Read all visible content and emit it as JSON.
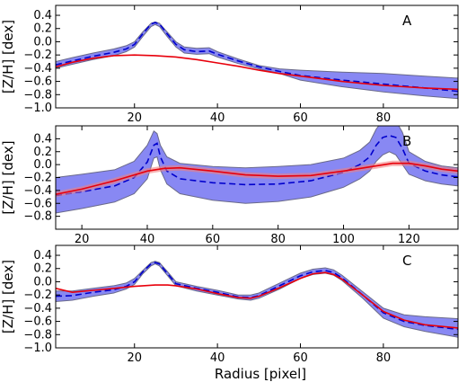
{
  "xlabel": "Radius [pixel]",
  "chart_data": [
    {
      "type": "line",
      "panel_label": "A",
      "ylabel": "[Z/H] [dex]",
      "xlim": [
        1,
        98
      ],
      "ylim": [
        -1.0,
        0.55
      ],
      "xticks": [
        20,
        40,
        60,
        80
      ],
      "yticks": [
        -1.0,
        -0.8,
        -0.6,
        -0.4,
        -0.2,
        0.0,
        0.2,
        0.4
      ],
      "ytick_labels": [
        "−1.0",
        "−0.8",
        "−0.6",
        "−0.4",
        "−0.2",
        "0.0",
        "0.2",
        "0.4"
      ],
      "band": {
        "x": [
          1,
          5,
          10,
          15,
          18,
          20,
          22,
          24,
          25,
          26,
          28,
          30,
          32,
          35,
          38,
          40,
          45,
          50,
          55,
          60,
          70,
          80,
          90,
          98
        ],
        "upper": [
          -0.3,
          -0.24,
          -0.17,
          -0.11,
          -0.06,
          0.0,
          0.15,
          0.28,
          0.3,
          0.28,
          0.14,
          0.0,
          -0.08,
          -0.1,
          -0.09,
          -0.15,
          -0.26,
          -0.36,
          -0.41,
          -0.43,
          -0.46,
          -0.48,
          -0.52,
          -0.55
        ],
        "lower": [
          -0.4,
          -0.34,
          -0.27,
          -0.21,
          -0.15,
          -0.08,
          0.08,
          0.23,
          0.26,
          0.23,
          0.07,
          -0.08,
          -0.17,
          -0.19,
          -0.18,
          -0.23,
          -0.33,
          -0.41,
          -0.48,
          -0.58,
          -0.68,
          -0.76,
          -0.82,
          -0.86
        ]
      },
      "series": [
        {
          "style": "dashed",
          "color": "#0000cc",
          "x": [
            1,
            5,
            10,
            15,
            18,
            20,
            22,
            24,
            25,
            26,
            28,
            30,
            32,
            35,
            38,
            40,
            45,
            50,
            55,
            60,
            70,
            80,
            90,
            98
          ],
          "y": [
            -0.35,
            -0.29,
            -0.22,
            -0.16,
            -0.11,
            -0.04,
            0.12,
            0.27,
            0.29,
            0.27,
            0.11,
            -0.04,
            -0.12,
            -0.15,
            -0.14,
            -0.19,
            -0.29,
            -0.38,
            -0.45,
            -0.51,
            -0.58,
            -0.64,
            -0.7,
            -0.75
          ]
        },
        {
          "style": "solid",
          "color": "#e8000b",
          "x": [
            1,
            5,
            10,
            15,
            20,
            25,
            30,
            35,
            40,
            45,
            50,
            55,
            60,
            65,
            70,
            75,
            80,
            85,
            90,
            98
          ],
          "y": [
            -0.38,
            -0.31,
            -0.25,
            -0.21,
            -0.2,
            -0.21,
            -0.23,
            -0.27,
            -0.32,
            -0.37,
            -0.43,
            -0.48,
            -0.52,
            -0.56,
            -0.6,
            -0.63,
            -0.66,
            -0.68,
            -0.7,
            -0.72
          ]
        }
      ]
    },
    {
      "type": "line",
      "panel_label": "B",
      "ylabel": "[Z/H] [dex]",
      "xlim": [
        12,
        135
      ],
      "ylim": [
        -1.0,
        0.6
      ],
      "xticks": [
        20,
        40,
        60,
        80,
        100,
        120
      ],
      "yticks": [
        -0.8,
        -0.6,
        -0.4,
        -0.2,
        0.0,
        0.2,
        0.4
      ],
      "ytick_labels": [
        "−0.8",
        "−0.6",
        "−0.4",
        "−0.2",
        "0.0",
        "0.2",
        "0.4"
      ],
      "band": {
        "x": [
          12,
          20,
          30,
          36,
          40,
          42,
          43,
          44,
          46,
          50,
          60,
          70,
          80,
          90,
          100,
          105,
          108,
          110,
          112,
          114,
          116,
          118,
          120,
          125,
          130,
          135
        ],
        "upper": [
          -0.2,
          -0.15,
          -0.08,
          0.05,
          0.3,
          0.52,
          0.48,
          0.3,
          0.12,
          0.02,
          -0.03,
          -0.05,
          -0.03,
          0.0,
          0.1,
          0.22,
          0.35,
          0.55,
          0.68,
          0.7,
          0.68,
          0.5,
          0.2,
          0.05,
          -0.02,
          -0.05
        ],
        "lower": [
          -0.75,
          -0.68,
          -0.58,
          -0.45,
          -0.22,
          0.1,
          0.12,
          -0.08,
          -0.3,
          -0.45,
          -0.55,
          -0.6,
          -0.57,
          -0.5,
          -0.35,
          -0.22,
          -0.1,
          0.05,
          0.15,
          0.2,
          0.15,
          0.0,
          -0.15,
          -0.25,
          -0.3,
          -0.33
        ]
      },
      "series": [
        {
          "style": "dashed",
          "color": "#0000cc",
          "x": [
            12,
            20,
            30,
            36,
            40,
            42,
            43,
            44,
            46,
            50,
            60,
            70,
            80,
            90,
            100,
            105,
            108,
            110,
            112,
            114,
            116,
            118,
            120,
            125,
            130,
            135
          ],
          "y": [
            -0.48,
            -0.42,
            -0.33,
            -0.2,
            0.04,
            0.3,
            0.33,
            0.12,
            -0.1,
            -0.22,
            -0.28,
            -0.31,
            -0.3,
            -0.25,
            -0.12,
            0.0,
            0.12,
            0.3,
            0.42,
            0.45,
            0.42,
            0.25,
            0.02,
            -0.1,
            -0.16,
            -0.19
          ]
        },
        {
          "style": "solid",
          "color": "#e8000b",
          "x": [
            12,
            20,
            30,
            40,
            45,
            50,
            60,
            70,
            80,
            90,
            100,
            110,
            115,
            120,
            125,
            130,
            135
          ],
          "y": [
            -0.46,
            -0.38,
            -0.25,
            -0.1,
            -0.06,
            -0.05,
            -0.1,
            -0.16,
            -0.18,
            -0.17,
            -0.1,
            -0.02,
            0.02,
            0.02,
            -0.02,
            -0.07,
            -0.1
          ]
        }
      ]
    },
    {
      "type": "line",
      "panel_label": "C",
      "ylabel": "[Z/H] [dex]",
      "xlim": [
        1,
        98
      ],
      "ylim": [
        -1.0,
        0.55
      ],
      "xticks": [
        20,
        40,
        60,
        80
      ],
      "yticks": [
        -1.0,
        -0.8,
        -0.6,
        -0.4,
        -0.2,
        0.0,
        0.2,
        0.4
      ],
      "ytick_labels": [
        "−1.0",
        "−0.8",
        "−0.6",
        "−0.4",
        "−0.2",
        "0.0",
        "0.2",
        "0.4"
      ],
      "band": {
        "x": [
          1,
          5,
          10,
          15,
          18,
          20,
          22,
          24,
          25,
          26,
          28,
          30,
          35,
          40,
          45,
          48,
          50,
          55,
          60,
          63,
          66,
          68,
          70,
          75,
          80,
          85,
          90,
          98
        ],
        "upper": [
          -0.14,
          -0.14,
          -0.1,
          -0.06,
          -0.02,
          0.05,
          0.17,
          0.29,
          0.31,
          0.29,
          0.15,
          0.0,
          -0.07,
          -0.13,
          -0.2,
          -0.2,
          -0.17,
          -0.02,
          0.13,
          0.19,
          0.21,
          0.18,
          0.1,
          -0.15,
          -0.4,
          -0.5,
          -0.53,
          -0.56
        ],
        "lower": [
          -0.3,
          -0.28,
          -0.22,
          -0.17,
          -0.11,
          -0.04,
          0.12,
          0.24,
          0.27,
          0.24,
          0.09,
          -0.06,
          -0.14,
          -0.2,
          -0.26,
          -0.28,
          -0.25,
          -0.11,
          0.05,
          0.11,
          0.13,
          0.1,
          0.02,
          -0.25,
          -0.55,
          -0.68,
          -0.75,
          -0.84
        ]
      },
      "series": [
        {
          "style": "dashed",
          "color": "#0000cc",
          "x": [
            1,
            5,
            10,
            15,
            18,
            20,
            22,
            24,
            25,
            26,
            28,
            30,
            35,
            40,
            45,
            48,
            50,
            55,
            60,
            63,
            66,
            68,
            70,
            75,
            80,
            85,
            90,
            98
          ],
          "y": [
            -0.22,
            -0.21,
            -0.16,
            -0.12,
            -0.07,
            0.0,
            0.15,
            0.27,
            0.29,
            0.27,
            0.12,
            -0.03,
            -0.1,
            -0.16,
            -0.23,
            -0.24,
            -0.21,
            -0.06,
            0.09,
            0.15,
            0.17,
            0.14,
            0.06,
            -0.2,
            -0.47,
            -0.6,
            -0.66,
            -0.72
          ]
        },
        {
          "style": "solid",
          "color": "#e8000b",
          "x": [
            1,
            5,
            10,
            15,
            20,
            25,
            28,
            30,
            35,
            40,
            45,
            48,
            50,
            55,
            60,
            63,
            66,
            68,
            70,
            75,
            80,
            85,
            90,
            98
          ],
          "y": [
            -0.1,
            -0.16,
            -0.13,
            -0.1,
            -0.07,
            -0.05,
            -0.05,
            -0.06,
            -0.11,
            -0.18,
            -0.24,
            -0.25,
            -0.22,
            -0.09,
            0.05,
            0.12,
            0.14,
            0.11,
            0.04,
            -0.2,
            -0.45,
            -0.58,
            -0.65,
            -0.7
          ]
        }
      ]
    }
  ]
}
